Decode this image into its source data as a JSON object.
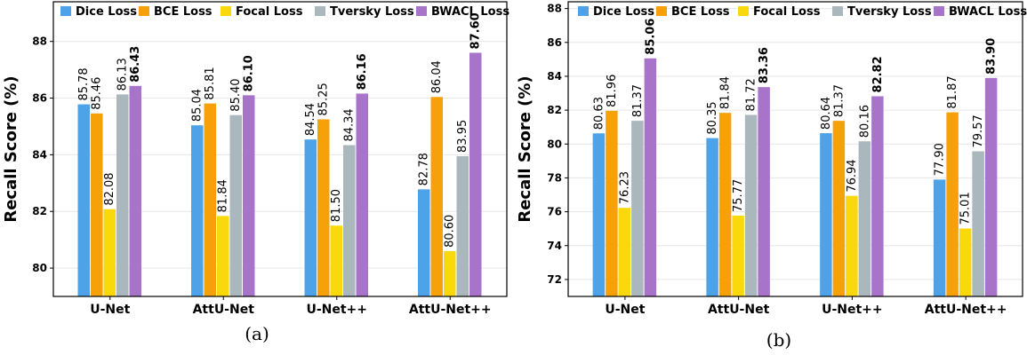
{
  "chart_data": [
    {
      "type": "bar",
      "panel_label": "(a)",
      "ylabel": "Recall Score (%)",
      "categories": [
        "U-Net",
        "AttU-Net",
        "U-Net++",
        "AttU-Net++"
      ],
      "ylim": [
        79,
        89.4
      ],
      "yticks": [
        80,
        82,
        84,
        86,
        88
      ],
      "grid": true,
      "legend_position": "top",
      "series": [
        {
          "name": "Dice Loss",
          "color": "#4ea3e8",
          "values": [
            85.78,
            85.04,
            84.54,
            82.78
          ],
          "labels": [
            "85.78",
            "85.04",
            "84.54",
            "82.78"
          ]
        },
        {
          "name": "BCE Loss",
          "color": "#f7a10a",
          "values": [
            85.46,
            85.81,
            85.25,
            86.04
          ],
          "labels": [
            "85.46",
            "85.81",
            "85.25",
            "86.04"
          ]
        },
        {
          "name": "Focal Loss",
          "color": "#f9d80c",
          "values": [
            82.08,
            81.84,
            81.5,
            80.6
          ],
          "labels": [
            "82.08",
            "81.84",
            "81.50",
            "80.60"
          ]
        },
        {
          "name": "Tversky Loss",
          "color": "#aab7bd",
          "values": [
            86.13,
            85.4,
            84.34,
            83.95
          ],
          "labels": [
            "86.13",
            "85.40",
            "84.34",
            "83.95"
          ]
        },
        {
          "name": "BWACL Loss",
          "color": "#a874ca",
          "values": [
            86.43,
            86.1,
            86.16,
            87.6
          ],
          "labels": [
            "86.43",
            "86.10",
            "86.16",
            "87.60"
          ],
          "bold": true
        }
      ]
    },
    {
      "type": "bar",
      "panel_label": "(b)",
      "ylabel": "Recall Score (%)",
      "categories": [
        "U-Net",
        "AttU-Net",
        "U-Net++",
        "AttU-Net++"
      ],
      "ylim": [
        71,
        88.4
      ],
      "yticks": [
        72,
        74,
        76,
        78,
        80,
        82,
        84,
        86,
        88
      ],
      "grid": true,
      "legend_position": "top",
      "series": [
        {
          "name": "Dice Loss",
          "color": "#4ea3e8",
          "values": [
            80.63,
            80.35,
            80.64,
            77.9
          ],
          "labels": [
            "80.63",
            "80.35",
            "80.64",
            "77.90"
          ]
        },
        {
          "name": "BCE Loss",
          "color": "#f7a10a",
          "values": [
            81.96,
            81.84,
            81.37,
            81.87
          ],
          "labels": [
            "81.96",
            "81.84",
            "81.37",
            "81.87"
          ]
        },
        {
          "name": "Focal Loss",
          "color": "#f9d80c",
          "values": [
            76.23,
            75.77,
            76.94,
            75.01
          ],
          "labels": [
            "76.23",
            "75.77",
            "76.94",
            "75.01"
          ]
        },
        {
          "name": "Tversky Loss",
          "color": "#aab7bd",
          "values": [
            81.37,
            81.72,
            80.16,
            79.57
          ],
          "labels": [
            "81.37",
            "81.72",
            "80.16",
            "79.57"
          ]
        },
        {
          "name": "BWACL Loss",
          "color": "#a874ca",
          "values": [
            85.06,
            83.36,
            82.82,
            83.9
          ],
          "labels": [
            "85.06",
            "83.36",
            "82.82",
            "83.90"
          ],
          "bold": true
        }
      ]
    }
  ]
}
